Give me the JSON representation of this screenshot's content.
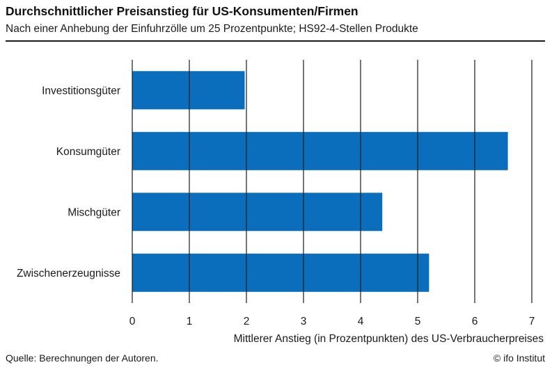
{
  "header": {
    "title": "Durchschnittlicher Preisanstieg für US-Konsumenten/Firmen",
    "subtitle": "Nach einer Anhebung der Einfuhrzölle um 25 Prozentpunkte; HS92-4-Stellen Produkte"
  },
  "footer": {
    "source": "Quelle: Berechnungen der Autoren.",
    "copyright": "© ifo Institut"
  },
  "chart_data": {
    "type": "bar",
    "orientation": "horizontal",
    "title": "Durchschnittlicher Preisanstieg für US-Konsumenten/Firmen",
    "subtitle": "Nach einer Anhebung der Einfuhrzölle um 25 Prozentpunkte; HS92-4-Stellen Produkte",
    "categories": [
      "Investitionsgüter",
      "Konsumgüter",
      "Mischgüter",
      "Zwischenerzeugnisse"
    ],
    "values": [
      1.97,
      6.58,
      4.38,
      5.2
    ],
    "xlabel": "Mittlerer Anstieg (in Prozentpunkten) des US-Verbraucherpreises",
    "ylabel": "",
    "xlim": [
      0,
      7
    ],
    "xticks": [
      "0",
      "1",
      "2",
      "3",
      "4",
      "5",
      "6",
      "7"
    ],
    "grid": true,
    "bar_color": "#0a6ebd",
    "grid_color": "#1a1a1a"
  }
}
